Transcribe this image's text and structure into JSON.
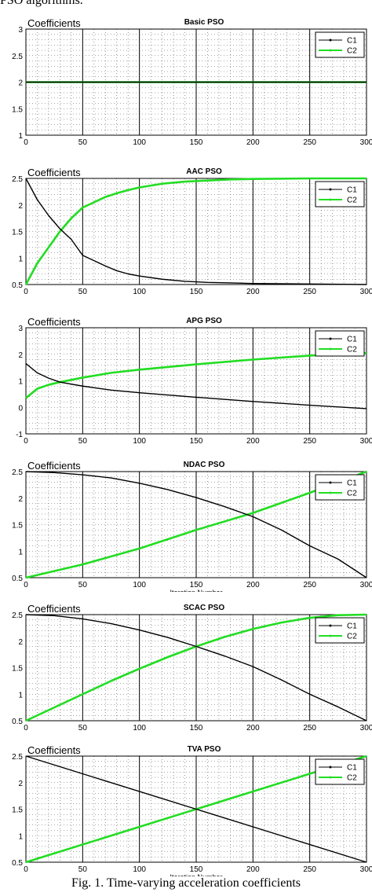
{
  "header_text": "PSO algorithms.",
  "caption": "Fig. 1. Time-varying acceleration coefficients",
  "chart_data": [
    {
      "type": "line",
      "title": "Basic PSO",
      "ylabel": "Coefficients",
      "xlabel": "",
      "xlim": [
        0,
        300
      ],
      "ylim": [
        1,
        3
      ],
      "xticks": [
        0,
        50,
        100,
        150,
        200,
        250,
        300
      ],
      "yticks": [
        1,
        1.5,
        2,
        2.5,
        3
      ],
      "grid": true,
      "legend": "top-right",
      "series": [
        {
          "name": "C1",
          "color": "#000000",
          "x": [
            0,
            300
          ],
          "y": [
            2,
            2
          ]
        },
        {
          "name": "C2",
          "color": "#22dd22",
          "x": [
            0,
            300
          ],
          "y": [
            2,
            2
          ]
        }
      ]
    },
    {
      "type": "line",
      "title": "AAC PSO",
      "ylabel": "Coefficients",
      "xlabel": "",
      "xlim": [
        0,
        300
      ],
      "ylim": [
        0.5,
        2.5
      ],
      "xticks": [
        0,
        50,
        100,
        150,
        200,
        250,
        300
      ],
      "yticks": [
        0.5,
        1,
        1.5,
        2,
        2.5
      ],
      "grid": true,
      "legend": "top-right",
      "series": [
        {
          "name": "C1",
          "color": "#000000",
          "x": [
            0,
            10,
            20,
            30,
            40,
            50,
            60,
            70,
            80,
            90,
            100,
            120,
            140,
            160,
            180,
            200,
            250,
            300
          ],
          "y": [
            2.5,
            2.1,
            1.8,
            1.55,
            1.35,
            1.05,
            0.95,
            0.85,
            0.76,
            0.7,
            0.66,
            0.6,
            0.56,
            0.54,
            0.53,
            0.52,
            0.51,
            0.5
          ]
        },
        {
          "name": "C2",
          "color": "#22dd22",
          "x": [
            0,
            10,
            20,
            30,
            40,
            50,
            60,
            70,
            80,
            90,
            100,
            120,
            140,
            160,
            180,
            200,
            250,
            300
          ],
          "y": [
            0.5,
            0.9,
            1.2,
            1.5,
            1.75,
            1.95,
            2.05,
            2.15,
            2.22,
            2.28,
            2.33,
            2.4,
            2.44,
            2.46,
            2.48,
            2.49,
            2.5,
            2.5
          ]
        }
      ]
    },
    {
      "type": "line",
      "title": "APG PSO",
      "ylabel": "Coefficients",
      "xlabel": "",
      "xlim": [
        0,
        300
      ],
      "ylim": [
        -1,
        3
      ],
      "xticks": [
        0,
        50,
        100,
        150,
        200,
        250,
        300
      ],
      "yticks": [
        -1,
        0,
        1,
        2,
        3
      ],
      "grid": true,
      "legend": "top-right",
      "series": [
        {
          "name": "C1",
          "color": "#000000",
          "x": [
            0,
            10,
            20,
            30,
            50,
            75,
            100,
            150,
            200,
            250,
            300
          ],
          "y": [
            1.65,
            1.3,
            1.1,
            0.95,
            0.8,
            0.65,
            0.55,
            0.38,
            0.22,
            0.08,
            -0.05
          ]
        },
        {
          "name": "C2",
          "color": "#22dd22",
          "x": [
            0,
            10,
            20,
            30,
            50,
            75,
            100,
            150,
            200,
            250,
            300
          ],
          "y": [
            0.35,
            0.7,
            0.85,
            0.95,
            1.12,
            1.3,
            1.42,
            1.62,
            1.8,
            1.95,
            2.05
          ]
        }
      ]
    },
    {
      "type": "line",
      "title": "NDAC PSO",
      "ylabel": "Coefficients",
      "xlabel": "Iteration Number",
      "xlim": [
        0,
        300
      ],
      "ylim": [
        0.5,
        2.5
      ],
      "xticks": [
        0,
        50,
        100,
        150,
        200,
        250,
        300
      ],
      "yticks": [
        0.5,
        1,
        1.5,
        2,
        2.5
      ],
      "grid": true,
      "legend": "top-right",
      "series": [
        {
          "name": "C1",
          "color": "#000000",
          "x": [
            0,
            25,
            50,
            75,
            100,
            125,
            150,
            175,
            200,
            225,
            250,
            275,
            300
          ],
          "y": [
            2.5,
            2.48,
            2.44,
            2.38,
            2.28,
            2.16,
            2.01,
            1.84,
            1.65,
            1.4,
            1.1,
            0.85,
            0.5
          ]
        },
        {
          "name": "C2",
          "color": "#22dd22",
          "x": [
            0,
            50,
            100,
            150,
            200,
            250,
            300
          ],
          "y": [
            0.5,
            0.75,
            1.05,
            1.4,
            1.72,
            2.1,
            2.5
          ]
        }
      ]
    },
    {
      "type": "line",
      "title": "SCAC PSO",
      "ylabel": "Coefficients",
      "xlabel": "",
      "xlim": [
        0,
        300
      ],
      "ylim": [
        0.5,
        2.5
      ],
      "xticks": [
        0,
        50,
        100,
        150,
        200,
        250,
        300
      ],
      "yticks": [
        0.5,
        1,
        1.5,
        2,
        2.5
      ],
      "grid": true,
      "legend": "top-right",
      "series": [
        {
          "name": "C1",
          "color": "#000000",
          "x": [
            0,
            25,
            50,
            75,
            100,
            125,
            150,
            175,
            200,
            225,
            250,
            275,
            300
          ],
          "y": [
            2.5,
            2.48,
            2.42,
            2.33,
            2.21,
            2.07,
            1.9,
            1.72,
            1.52,
            1.27,
            1.0,
            0.76,
            0.5
          ]
        },
        {
          "name": "C2",
          "color": "#22dd22",
          "x": [
            0,
            25,
            50,
            75,
            100,
            125,
            150,
            175,
            200,
            225,
            250,
            275,
            300
          ],
          "y": [
            0.5,
            0.75,
            1.0,
            1.25,
            1.48,
            1.7,
            1.9,
            2.08,
            2.23,
            2.35,
            2.44,
            2.49,
            2.5
          ]
        }
      ]
    },
    {
      "type": "line",
      "title": "TVA PSO",
      "ylabel": "Coefficients",
      "xlabel": "Iteration Number",
      "xlim": [
        0,
        300
      ],
      "ylim": [
        0.5,
        2.5
      ],
      "xticks": [
        0,
        50,
        100,
        150,
        200,
        250,
        300
      ],
      "yticks": [
        0.5,
        1,
        1.5,
        2,
        2.5
      ],
      "grid": true,
      "legend": "top-right",
      "series": [
        {
          "name": "C1",
          "color": "#000000",
          "x": [
            0,
            300
          ],
          "y": [
            2.5,
            0.5
          ]
        },
        {
          "name": "C2",
          "color": "#22dd22",
          "x": [
            0,
            300
          ],
          "y": [
            0.5,
            2.5
          ]
        }
      ]
    }
  ]
}
